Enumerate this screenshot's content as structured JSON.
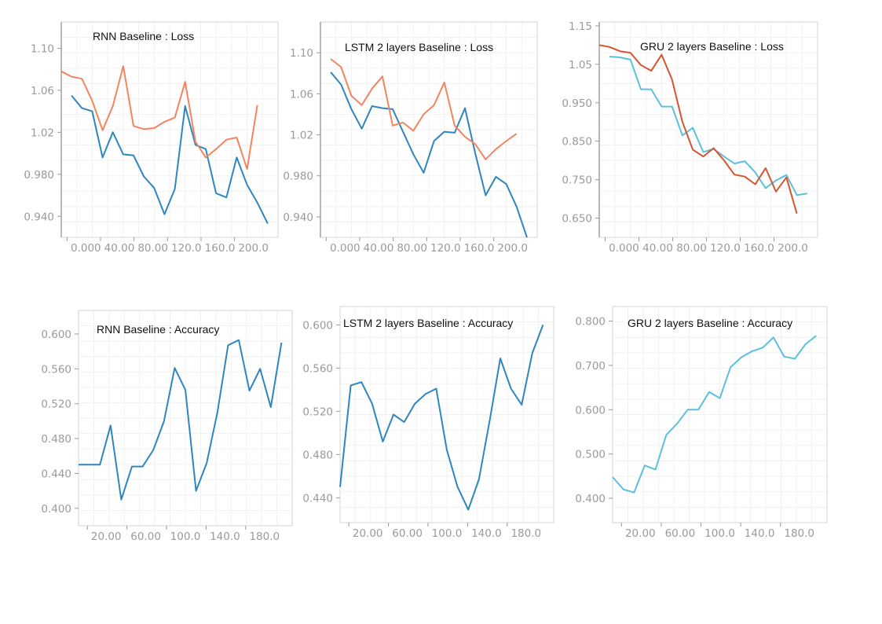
{
  "chart_data": [
    {
      "type": "line",
      "title": "RNN Baseline : Loss",
      "xlabel": "",
      "ylabel": "",
      "grid": true,
      "xlim": [
        0,
        2100
      ],
      "ylim": [
        0.92,
        1.125
      ],
      "xticks": [
        "0.000",
        "40.00",
        "80.00",
        "120.0",
        "160.0",
        "200.0"
      ],
      "yticks": [
        "1.10",
        "1.06",
        "1.02",
        "0.980",
        "0.940"
      ],
      "series": [
        {
          "color": "#2e86c1",
          "x": [
            100,
            200,
            300,
            400,
            500,
            600,
            700,
            800,
            900,
            1000,
            1100,
            1200,
            1300,
            1400,
            1500,
            1600,
            1700,
            1800,
            1900,
            2000
          ],
          "y": [
            1.055,
            1.043,
            1.04,
            0.996,
            1.02,
            0.999,
            0.998,
            0.978,
            0.967,
            0.942,
            0.966,
            1.045,
            1.008,
            1.004,
            0.962,
            0.958,
            0.996,
            0.97,
            0.953,
            0.933
          ]
        },
        {
          "color": "#f4845f",
          "x": [
            0,
            100,
            200,
            300,
            400,
            500,
            600,
            700,
            800,
            900,
            1000,
            1100,
            1200,
            1300,
            1400,
            1500,
            1600,
            1700,
            1800,
            1900
          ],
          "y": [
            1.078,
            1.073,
            1.071,
            1.05,
            1.022,
            1.045,
            1.083,
            1.026,
            1.023,
            1.024,
            1.03,
            1.034,
            1.068,
            1.011,
            0.996,
            1.004,
            1.013,
            1.015,
            0.985,
            1.046
          ]
        }
      ]
    },
    {
      "type": "line",
      "title": "LSTM 2 layers Baseline : Loss",
      "xlabel": "",
      "ylabel": "",
      "grid": true,
      "xlim": [
        0,
        2100
      ],
      "ylim": [
        0.92,
        1.13
      ],
      "xticks": [
        "0.000",
        "40.00",
        "80.00",
        "120.0",
        "160.0",
        "200.0"
      ],
      "yticks": [
        "1.10",
        "1.06",
        "1.02",
        "0.980",
        "0.940"
      ],
      "series": [
        {
          "color": "#2e86c1",
          "x": [
            100,
            200,
            300,
            400,
            500,
            600,
            700,
            800,
            900,
            1000,
            1100,
            1200,
            1300,
            1400,
            1500,
            1600,
            1700,
            1800,
            1900,
            2000
          ],
          "y": [
            1.081,
            1.069,
            1.045,
            1.026,
            1.048,
            1.046,
            1.045,
            1.023,
            1.001,
            0.983,
            1.014,
            1.023,
            1.022,
            1.046,
            1.002,
            0.961,
            0.979,
            0.972,
            0.95,
            0.92
          ]
        },
        {
          "color": "#f4845f",
          "x": [
            100,
            200,
            300,
            400,
            500,
            600,
            700,
            800,
            900,
            1000,
            1100,
            1200,
            1300,
            1400,
            1500,
            1600,
            1700,
            1800,
            1900
          ],
          "y": [
            1.094,
            1.086,
            1.058,
            1.049,
            1.065,
            1.077,
            1.029,
            1.032,
            1.024,
            1.04,
            1.049,
            1.071,
            1.029,
            1.018,
            1.011,
            0.996,
            1.006,
            1.014,
            1.021
          ]
        }
      ]
    },
    {
      "type": "line",
      "title": "GRU 2 layers Baseline : Loss",
      "xlabel": "",
      "ylabel": "",
      "grid": true,
      "xlim": [
        0,
        2100
      ],
      "ylim": [
        0.6,
        1.16
      ],
      "xticks": [
        "0.000",
        "40.00",
        "80.00",
        "120.0",
        "160.0",
        "200.0"
      ],
      "yticks": [
        "1.15",
        "1.05",
        "0.950",
        "0.850",
        "0.750",
        "0.650"
      ],
      "series": [
        {
          "color": "#5bc0de",
          "x": [
            100,
            200,
            300,
            400,
            500,
            600,
            700,
            800,
            900,
            1000,
            1100,
            1200,
            1300,
            1400,
            1500,
            1600,
            1700,
            1800,
            1900,
            2000
          ],
          "y": [
            1.07,
            1.068,
            1.062,
            0.985,
            0.985,
            0.94,
            0.94,
            0.865,
            0.885,
            0.822,
            0.83,
            0.81,
            0.792,
            0.798,
            0.769,
            0.728,
            0.748,
            0.762,
            0.71,
            0.714
          ]
        },
        {
          "color": "#d9532f",
          "x": [
            0,
            100,
            200,
            300,
            400,
            500,
            600,
            700,
            800,
            900,
            1000,
            1100,
            1200,
            1300,
            1400,
            1500,
            1600,
            1700,
            1800,
            1900
          ],
          "y": [
            1.1,
            1.095,
            1.084,
            1.08,
            1.048,
            1.033,
            1.075,
            1.01,
            0.9,
            0.828,
            0.81,
            0.832,
            0.8,
            0.763,
            0.758,
            0.738,
            0.78,
            0.719,
            0.756,
            0.662
          ]
        }
      ]
    },
    {
      "type": "line",
      "title": "RNN Baseline : Accuracy",
      "xlabel": "",
      "ylabel": "",
      "grid": true,
      "xlim": [
        100,
        2100
      ],
      "ylim": [
        0.38,
        0.627
      ],
      "xticks": [
        "20.00",
        "60.00",
        "100.0",
        "140.0",
        "180.0"
      ],
      "yticks": [
        "0.600",
        "0.560",
        "0.520",
        "0.480",
        "0.440",
        "0.400"
      ],
      "series": [
        {
          "color": "#2e86c1",
          "x": [
            100,
            200,
            300,
            400,
            500,
            600,
            700,
            800,
            900,
            1000,
            1100,
            1200,
            1300,
            1400,
            1500,
            1600,
            1700,
            1800,
            1900,
            2000
          ],
          "y": [
            0.45,
            0.45,
            0.45,
            0.495,
            0.41,
            0.448,
            0.448,
            0.467,
            0.5,
            0.561,
            0.536,
            0.42,
            0.452,
            0.51,
            0.587,
            0.593,
            0.535,
            0.56,
            0.516,
            0.59
          ]
        }
      ]
    },
    {
      "type": "line",
      "title": "LSTM 2 layers Baseline : Accuracy",
      "xlabel": "",
      "ylabel": "",
      "grid": true,
      "xlim": [
        100,
        2100
      ],
      "ylim": [
        0.417,
        0.617
      ],
      "xticks": [
        "20.00",
        "60.00",
        "100.0",
        "140.0",
        "180.0"
      ],
      "yticks": [
        "0.600",
        "0.560",
        "0.520",
        "0.480",
        "0.440"
      ],
      "series": [
        {
          "color": "#2e86c1",
          "x": [
            100,
            200,
            300,
            400,
            500,
            600,
            700,
            800,
            900,
            1000,
            1100,
            1200,
            1300,
            1400,
            1500,
            1600,
            1700,
            1800,
            1900,
            2000
          ],
          "y": [
            0.45,
            0.544,
            0.547,
            0.527,
            0.492,
            0.517,
            0.51,
            0.527,
            0.536,
            0.541,
            0.484,
            0.45,
            0.429,
            0.457,
            0.511,
            0.569,
            0.541,
            0.526,
            0.574,
            0.6
          ]
        }
      ]
    },
    {
      "type": "line",
      "title": "GRU 2 layers Baseline : Accuracy",
      "xlabel": "",
      "ylabel": "",
      "grid": true,
      "xlim": [
        100,
        2100
      ],
      "ylim": [
        0.345,
        0.833
      ],
      "xticks": [
        "20.00",
        "60.00",
        "100.0",
        "140.0",
        "180.0"
      ],
      "yticks": [
        "0.800",
        "0.700",
        "0.600",
        "0.500",
        "0.400"
      ],
      "series": [
        {
          "color": "#5bc0de",
          "x": [
            100,
            200,
            300,
            400,
            500,
            600,
            700,
            800,
            900,
            1000,
            1100,
            1200,
            1300,
            1400,
            1500,
            1600,
            1700,
            1800,
            1900,
            2000
          ],
          "y": [
            0.448,
            0.42,
            0.413,
            0.474,
            0.465,
            0.543,
            0.568,
            0.6,
            0.6,
            0.64,
            0.626,
            0.696,
            0.718,
            0.732,
            0.74,
            0.763,
            0.72,
            0.715,
            0.748,
            0.767
          ]
        }
      ]
    }
  ]
}
